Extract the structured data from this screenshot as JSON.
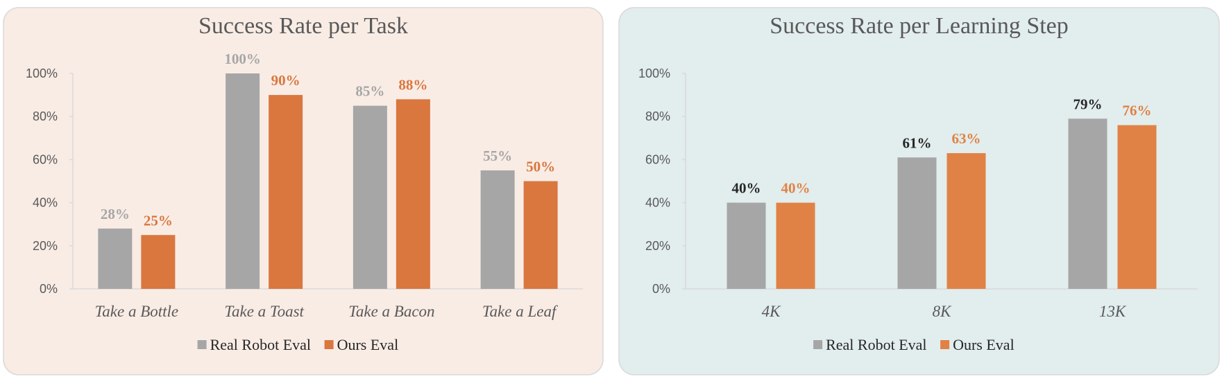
{
  "chart_data": [
    {
      "type": "bar",
      "title": "Success Rate per Task",
      "categories": [
        "Take a Bottle",
        "Take a Toast",
        "Take a Bacon",
        "Take a Leaf"
      ],
      "series": [
        {
          "name": "Real Robot Eval",
          "values": [
            28,
            100,
            85,
            55
          ],
          "labels": [
            "28%",
            "100%",
            "85%",
            "55%"
          ],
          "color": "#a6a6a6",
          "label_color": "#a6a6a6"
        },
        {
          "name": "Ours Eval",
          "values": [
            25,
            90,
            88,
            50
          ],
          "labels": [
            "25%",
            "90%",
            "88%",
            "50%"
          ],
          "color": "#d9773f",
          "label_color": "#d9773f"
        }
      ],
      "yticks": [
        "0%",
        "20%",
        "40%",
        "60%",
        "80%",
        "100%"
      ],
      "ylim": [
        0,
        100
      ],
      "grid": false,
      "legend": "bottom",
      "background": "#f9ece5"
    },
    {
      "type": "bar",
      "title": "Success Rate per Learning Step",
      "categories": [
        "4K",
        "8K",
        "13K"
      ],
      "series": [
        {
          "name": "Real Robot Eval",
          "values": [
            40,
            61,
            79
          ],
          "labels": [
            "40%",
            "61%",
            "79%"
          ],
          "color": "#a6a6a6",
          "label_color": "#262626"
        },
        {
          "name": "Ours Eval",
          "values": [
            40,
            63,
            76
          ],
          "labels": [
            "40%",
            "63%",
            "76%"
          ],
          "color": "#e08245",
          "label_color": "#e08245"
        }
      ],
      "yticks": [
        "0%",
        "20%",
        "40%",
        "60%",
        "80%",
        "100%"
      ],
      "ylim": [
        0,
        100
      ],
      "grid": false,
      "legend": "bottom",
      "background": "#e2eded"
    }
  ]
}
